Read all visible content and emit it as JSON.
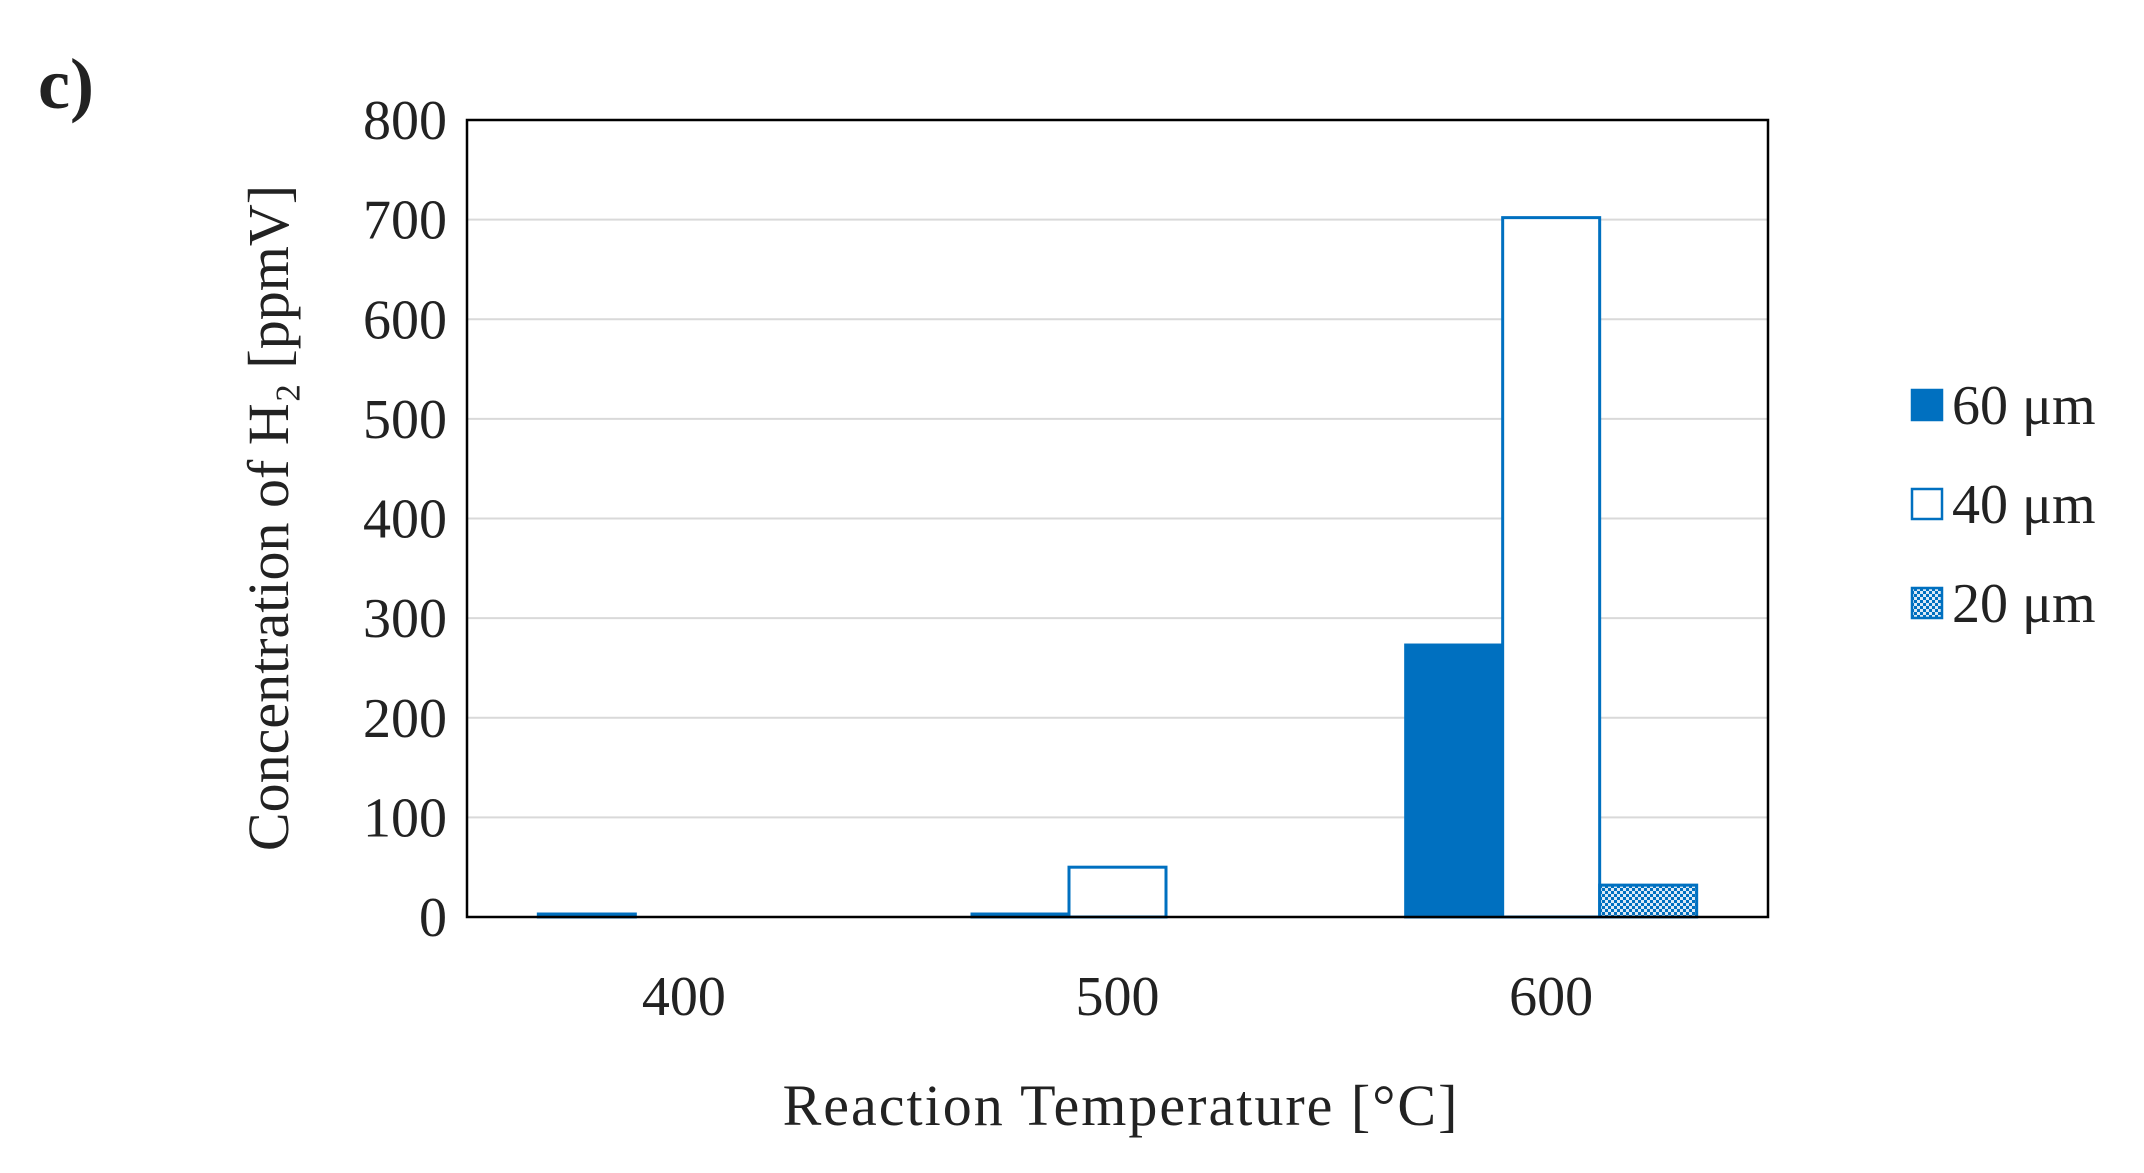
{
  "panel_label": "c)",
  "colors": {
    "series_60": "#0070c0",
    "series_40_outline": "#0070c0",
    "series_40_fill": "#ffffff",
    "series_20": "#0070c0",
    "grid": "#d9d9d9",
    "frame": "#000000"
  },
  "chart_data": {
    "type": "bar",
    "categories": [
      "400",
      "500",
      "600"
    ],
    "series": [
      {
        "name": "60 μm",
        "values": [
          3,
          3,
          273
        ],
        "style": "solid"
      },
      {
        "name": "40 μm",
        "values": [
          0,
          50,
          702
        ],
        "style": "outline"
      },
      {
        "name": "20 μm",
        "values": [
          0,
          0,
          32
        ],
        "style": "hatched"
      }
    ],
    "title": "",
    "xlabel": "Reaction Temperature [°C]",
    "ylabel": "Concentration of H₂ [ppmV]",
    "ylim": [
      0,
      800
    ],
    "yticks": [
      0,
      100,
      200,
      300,
      400,
      500,
      600,
      700,
      800
    ],
    "grid": true,
    "legend_position": "right"
  }
}
